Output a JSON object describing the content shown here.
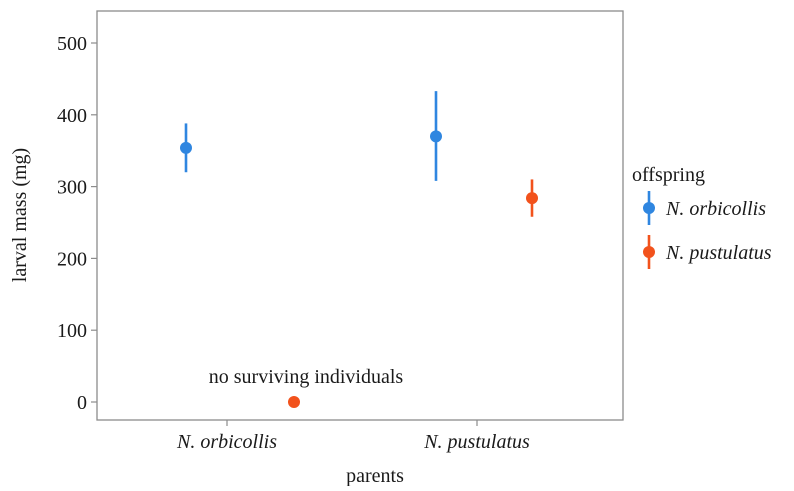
{
  "chart_data": {
    "type": "scatter",
    "xlabel": "parents",
    "ylabel": "larval mass (mg)",
    "categories": [
      "N. orbicollis",
      "N. pustulatus"
    ],
    "ylim": [
      -20,
      540
    ],
    "yticks": [
      0,
      100,
      200,
      300,
      400,
      500
    ],
    "grid": false,
    "legend": {
      "title": "offspring",
      "placement": "right",
      "entries": [
        "N. orbicollis",
        "N. pustulatus"
      ]
    },
    "series": [
      {
        "name": "N. orbicollis",
        "color": "#2f86e0",
        "points": [
          {
            "category": "N. orbicollis",
            "y": 354,
            "ymin": 320,
            "ymax": 388
          },
          {
            "category": "N. pustulatus",
            "y": 370,
            "ymin": 308,
            "ymax": 433
          }
        ]
      },
      {
        "name": "N. pustulatus",
        "color": "#f2521c",
        "points": [
          {
            "category": "N. orbicollis",
            "y": 0,
            "ymin": null,
            "ymax": null
          },
          {
            "category": "N. pustulatus",
            "y": 284,
            "ymin": 258,
            "ymax": 310
          }
        ]
      }
    ],
    "annotations": [
      {
        "text": "no surviving individuals",
        "category": "N. orbicollis",
        "y": 0
      }
    ]
  }
}
